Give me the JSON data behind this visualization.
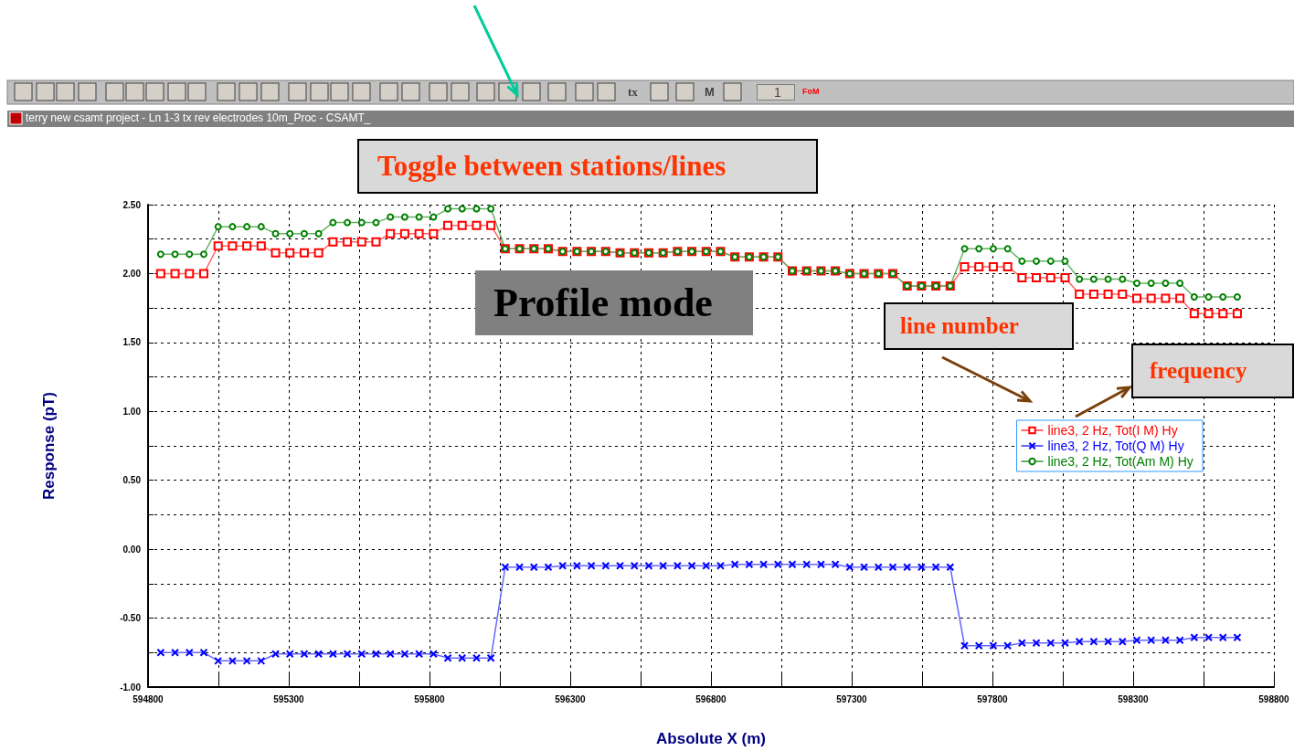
{
  "chart_data": {
    "type": "line",
    "xlabel": "Absolute X (m)",
    "ylabel": "Response (pT)",
    "x": [
      594845,
      594896,
      594947,
      594998,
      595049,
      595100,
      595151,
      595202,
      595253,
      595304,
      595355,
      595406,
      595457,
      595508,
      595559,
      595610,
      595661,
      595712,
      595763,
      595814,
      595865,
      595916,
      595967,
      596018,
      596069,
      596120,
      596171,
      596222,
      596273,
      596324,
      596375,
      596426,
      596477,
      596528,
      596579,
      596630,
      596681,
      596732,
      596783,
      596834,
      596885,
      596936,
      596987,
      597038,
      597089,
      597140,
      597191,
      597242,
      597293,
      597344,
      597395,
      597446,
      597497,
      597548,
      597599,
      597650,
      597701,
      597752,
      597803,
      597854,
      597905,
      597956,
      598007,
      598058,
      598109,
      598160,
      598211,
      598262,
      598313,
      598364,
      598415,
      598466,
      598517,
      598568,
      598619,
      598670
    ],
    "series": [
      {
        "name": "line3, 2 Hz, Tot(I M) Hy",
        "color": "#ff0000",
        "marker": "square",
        "values": [
          2.0,
          2.0,
          2.0,
          2.0,
          2.2,
          2.2,
          2.2,
          2.2,
          2.15,
          2.15,
          2.15,
          2.15,
          2.23,
          2.23,
          2.23,
          2.23,
          2.29,
          2.29,
          2.29,
          2.29,
          2.35,
          2.35,
          2.35,
          2.35,
          2.18,
          2.18,
          2.18,
          2.18,
          2.16,
          2.16,
          2.16,
          2.16,
          2.15,
          2.15,
          2.15,
          2.15,
          2.16,
          2.16,
          2.16,
          2.16,
          2.12,
          2.12,
          2.12,
          2.12,
          2.02,
          2.02,
          2.02,
          2.02,
          2.0,
          2.0,
          2.0,
          2.0,
          1.91,
          1.91,
          1.91,
          1.91,
          2.05,
          2.05,
          2.05,
          2.05,
          1.97,
          1.97,
          1.97,
          1.97,
          1.85,
          1.85,
          1.85,
          1.85,
          1.82,
          1.82,
          1.82,
          1.82,
          1.71,
          1.71,
          1.71,
          1.71
        ]
      },
      {
        "name": "line3, 2 Hz, Tot(Q M) Hy",
        "color": "#0000ff",
        "marker": "cross",
        "values": [
          -0.75,
          -0.75,
          -0.75,
          -0.75,
          -0.81,
          -0.81,
          -0.81,
          -0.81,
          -0.76,
          -0.76,
          -0.76,
          -0.76,
          -0.76,
          -0.76,
          -0.76,
          -0.76,
          -0.76,
          -0.76,
          -0.76,
          -0.76,
          -0.79,
          -0.79,
          -0.79,
          -0.79,
          -0.13,
          -0.13,
          -0.13,
          -0.13,
          -0.12,
          -0.12,
          -0.12,
          -0.12,
          -0.12,
          -0.12,
          -0.12,
          -0.12,
          -0.12,
          -0.12,
          -0.12,
          -0.12,
          -0.11,
          -0.11,
          -0.11,
          -0.11,
          -0.11,
          -0.11,
          -0.11,
          -0.11,
          -0.13,
          -0.13,
          -0.13,
          -0.13,
          -0.13,
          -0.13,
          -0.13,
          -0.13,
          -0.7,
          -0.7,
          -0.7,
          -0.7,
          -0.68,
          -0.68,
          -0.68,
          -0.68,
          -0.67,
          -0.67,
          -0.67,
          -0.67,
          -0.66,
          -0.66,
          -0.66,
          -0.66,
          -0.64,
          -0.64,
          -0.64,
          -0.64
        ]
      },
      {
        "name": "line3, 2 Hz, Tot(Am M) Hy",
        "color": "#008000",
        "marker": "circle",
        "values": [
          2.14,
          2.14,
          2.14,
          2.14,
          2.34,
          2.34,
          2.34,
          2.34,
          2.29,
          2.29,
          2.29,
          2.29,
          2.37,
          2.37,
          2.37,
          2.37,
          2.41,
          2.41,
          2.41,
          2.41,
          2.47,
          2.47,
          2.47,
          2.47,
          2.18,
          2.18,
          2.18,
          2.18,
          2.16,
          2.16,
          2.16,
          2.16,
          2.15,
          2.15,
          2.15,
          2.15,
          2.16,
          2.16,
          2.16,
          2.16,
          2.12,
          2.12,
          2.12,
          2.12,
          2.02,
          2.02,
          2.02,
          2.02,
          2.0,
          2.0,
          2.0,
          2.0,
          1.91,
          1.91,
          1.91,
          1.91,
          2.18,
          2.18,
          2.18,
          2.18,
          2.09,
          2.09,
          2.09,
          2.09,
          1.96,
          1.96,
          1.96,
          1.96,
          1.93,
          1.93,
          1.93,
          1.93,
          1.83,
          1.83,
          1.83,
          1.83
        ]
      }
    ],
    "xlim": [
      594800,
      598800
    ],
    "xticks": [
      594800,
      {
        "value": 595050,
        "label": null
      },
      595300,
      {
        "value": 595550,
        "label": null
      },
      595800,
      {
        "value": 596050,
        "label": null
      },
      596300,
      {
        "value": 596550,
        "label": null
      },
      596800,
      {
        "value": 597050,
        "label": null
      },
      597300,
      {
        "value": 597550,
        "label": null
      },
      597800,
      {
        "value": 598050,
        "label": null
      },
      598300,
      {
        "value": 598550,
        "label": null
      },
      598800
    ],
    "ylim": [
      -1,
      2.5
    ],
    "yticks": [
      {
        "value": -1,
        "label": "-1.00"
      },
      {
        "value": -0.75,
        "label": null
      },
      {
        "value": -0.5,
        "label": "-0.50"
      },
      {
        "value": -0.25,
        "label": null
      },
      {
        "value": 0,
        "label": "0.00"
      },
      {
        "value": 0.25,
        "label": null
      },
      {
        "value": 0.5,
        "label": "0.50"
      },
      {
        "value": 0.75,
        "label": null
      },
      {
        "value": 1,
        "label": "1.00"
      },
      {
        "value": 1.25,
        "label": null
      },
      {
        "value": 1.5,
        "label": "1.50"
      },
      {
        "value": 1.75,
        "label": null
      },
      {
        "value": 2,
        "label": "2.00"
      },
      {
        "value": 2.25,
        "label": null
      },
      {
        "value": 2.5,
        "label": "2.50"
      }
    ],
    "grid": true,
    "legend": "right",
    "line_style": "solid",
    "annotations": [
      "terry new csamt project - Ln 1-3 tx rev electrodes 10m_Proc - CSAMT_",
      "Toggle between stations/lines",
      "Profile mode",
      "line number",
      "frequency",
      "tx",
      "M",
      "1",
      "FoM"
    ]
  }
}
